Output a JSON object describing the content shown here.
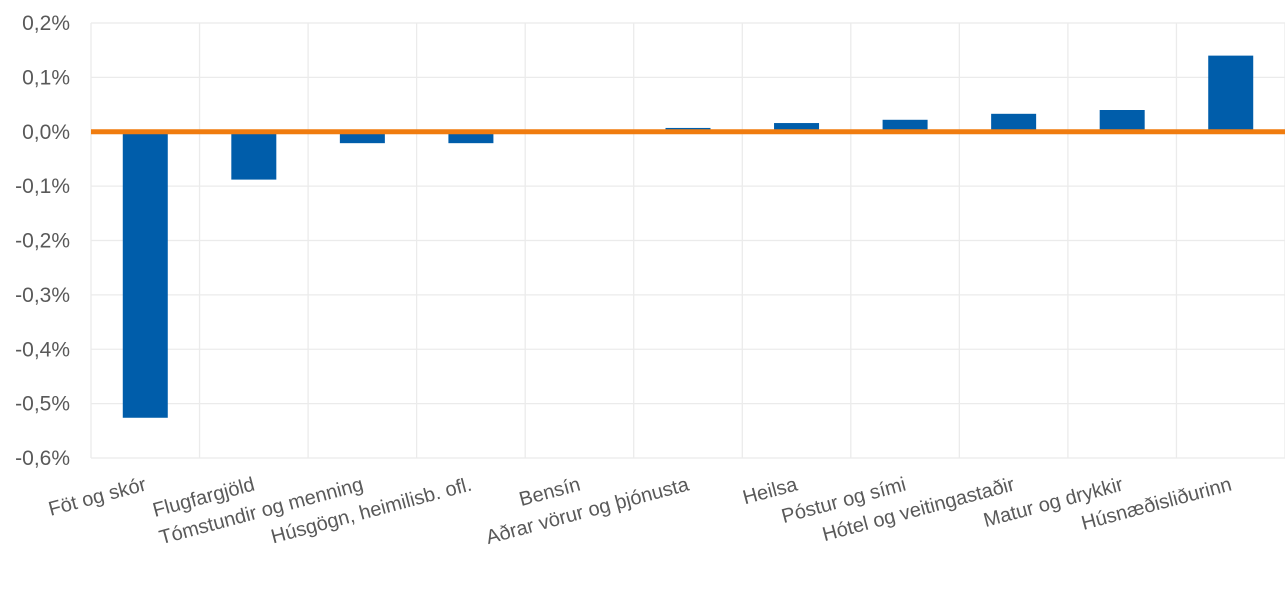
{
  "chart_data": {
    "type": "bar",
    "categories": [
      "Föt og skór",
      "Flugfargjöld",
      "Tómstundir og menning",
      "Húsgögn, heimilisb. ofl.",
      "Bensín",
      "Aðrar vörur og þjónusta",
      "Heilsa",
      "Póstur og sími",
      "Hótel og veitingastaðir",
      "Matur og drykkir",
      "Húsnæðisliðurinn"
    ],
    "values": [
      -0.526,
      -0.088,
      -0.021,
      -0.021,
      0.0,
      0.007,
      0.016,
      0.022,
      0.033,
      0.04,
      0.14
    ],
    "ylim": [
      -0.6,
      0.2
    ],
    "yticks": [
      "0,2%",
      "0,1%",
      "0,0%",
      "-0,1%",
      "-0,2%",
      "-0,3%",
      "-0,4%",
      "-0,5%",
      "-0,6%"
    ],
    "bar_color": "#005DAA",
    "zero_line_color": "#F07C0F",
    "grid": true,
    "grid_color": "#EBEBEB",
    "title": "",
    "xlabel": "",
    "ylabel": ""
  }
}
